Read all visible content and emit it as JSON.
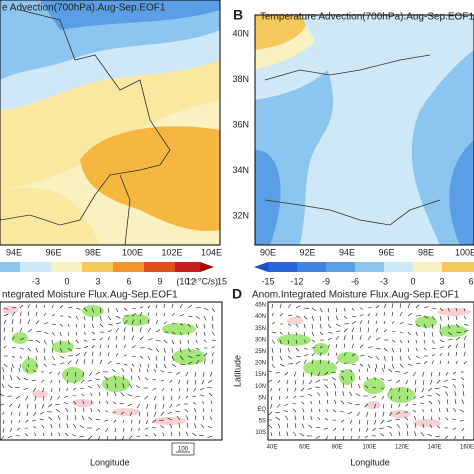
{
  "panel_a": {
    "title": "e Advection(700hPa).Aug-Sep.EOF1",
    "x_labels": [
      "94E",
      "96E",
      "98E",
      "100E",
      "102E",
      "104E"
    ],
    "colorbar_labels": [
      "-3",
      "0",
      "3",
      "6",
      "9",
      "12",
      "15"
    ],
    "colorbar_unit": "(10⁻⁵°C/s)"
  },
  "panel_b": {
    "letter": "B",
    "title": "Temperature Advection(700hPa).Aug-Sep.EOF1",
    "y_labels": [
      "40N",
      "38N",
      "36N",
      "34N",
      "32N"
    ],
    "x_labels": [
      "90E",
      "92E",
      "94E",
      "96E",
      "98E",
      "100E"
    ],
    "colorbar_labels": [
      "-15",
      "-12",
      "-9",
      "-6",
      "-3",
      "0",
      "3",
      "6"
    ]
  },
  "panel_c": {
    "title": "ntegrated Moisture Flux.Aug-Sep.EOF1",
    "x_axis_label": "Longitude",
    "vector_reference": "100"
  },
  "panel_d": {
    "letter": "D",
    "title": "Anom.Integrated Moisture Flux.Aug-Sep.EOF1",
    "y_axis_label": "Latitude",
    "y_labels": [
      "45N",
      "40N",
      "35N",
      "30N",
      "25N",
      "20N",
      "15N",
      "10N",
      "5N",
      "EQ",
      "5S",
      "10S"
    ],
    "x_labels": [
      "40E",
      "60E",
      "80E",
      "100E",
      "120E",
      "140E",
      "160E"
    ],
    "x_axis_label": "Longitude"
  }
}
